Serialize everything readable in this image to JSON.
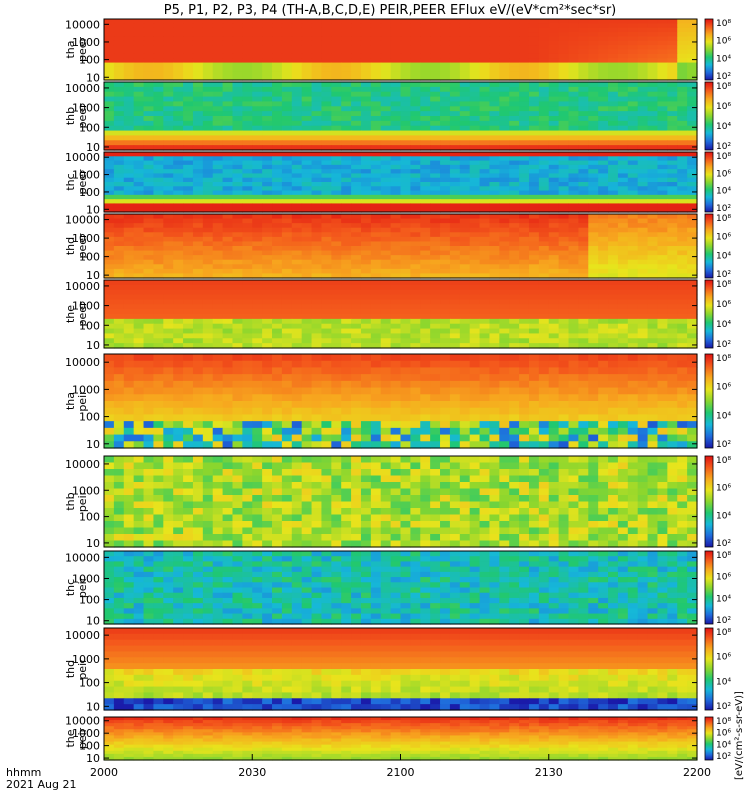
{
  "title": "P5, P1, P2, P3, P4 (TH-A,B,C,D,E) PEIR,PEER EFlux eV/(eV*cm²*sec*sr)",
  "xaxis": {
    "label_line1": "hhmm",
    "label_line2": "2021 Aug 21",
    "ticks": [
      "2000",
      "2030",
      "2100",
      "2130",
      "2200"
    ]
  },
  "colorbar_label": "[eV/(cm²-s-sr-eV)]",
  "colorbar_ticks": [
    "10⁸",
    "10⁶",
    "10⁴",
    "10²"
  ],
  "colorscale": [
    "#1a18a8",
    "#1f6bdc",
    "#16b8d8",
    "#20c870",
    "#8ad62e",
    "#e8e41c",
    "#f7a81e",
    "#f45a1c",
    "#e01212"
  ],
  "chart_data": [
    {
      "type": "heatmap",
      "panel": "tha-peer",
      "ylabel": [
        "tha",
        "peer"
      ],
      "yticks": [
        "10000",
        "1000",
        "100",
        "10"
      ],
      "ylim_eV": [
        7,
        20000
      ],
      "yscale": "log",
      "x_range": [
        "2000",
        "2200"
      ],
      "character": "electron flux: red core at high energies decaying after ~2150, green band at low energies"
    },
    {
      "type": "heatmap",
      "panel": "thb-peer",
      "ylabel": [
        "thb",
        "peer"
      ],
      "yticks": [
        "10000",
        "1000",
        "100",
        "10"
      ],
      "ylim_eV": [
        7,
        20000
      ],
      "yscale": "log",
      "x_range": [
        "2000",
        "2200"
      ],
      "character": "noisy cyan/blue at high energies, green/yellow/red at lowest energies"
    },
    {
      "type": "heatmap",
      "panel": "thc-peer",
      "ylabel": [
        "thc",
        "peer"
      ],
      "yticks": [
        "10000",
        "1000",
        "100",
        "10"
      ],
      "ylim_eV": [
        7,
        20000
      ],
      "yscale": "log",
      "x_range": [
        "2000",
        "2200"
      ],
      "character": "noisy blue at high energies, red band at lowest energies"
    },
    {
      "type": "heatmap",
      "panel": "thd-peer",
      "ylabel": [
        "thd",
        "peer"
      ],
      "yticks": [
        "10000",
        "1000",
        "100",
        "10"
      ],
      "ylim_eV": [
        7,
        20000
      ],
      "yscale": "log",
      "x_range": [
        "2000",
        "2200"
      ],
      "character": "red/orange throughout, softening after ~2140"
    },
    {
      "type": "heatmap",
      "panel": "the-peer",
      "ylabel": [
        "the",
        "peer"
      ],
      "yticks": [
        "10000",
        "1000",
        "100",
        "10"
      ],
      "ylim_eV": [
        7,
        20000
      ],
      "yscale": "log",
      "x_range": [
        "2000",
        "2200"
      ],
      "character": "red high-energy core, green low-energy band, data gap near 2132"
    },
    {
      "type": "heatmap",
      "panel": "tha-peir",
      "ylabel": [
        "tha",
        "peir"
      ],
      "yticks": [
        "10000",
        "1000",
        "100",
        "10"
      ],
      "ylim_eV": [
        7,
        20000
      ],
      "yscale": "log",
      "x_range": [
        "2000",
        "2200"
      ],
      "character": "ion flux: red/orange above ~100 eV, noisy blue/black fill below"
    },
    {
      "type": "heatmap",
      "panel": "thb-peir",
      "ylabel": [
        "thb",
        "peir"
      ],
      "yticks": [
        "10000",
        "1000",
        "100",
        "10"
      ],
      "ylim_eV": [
        7,
        20000
      ],
      "yscale": "log",
      "x_range": [
        "2000",
        "2200"
      ],
      "character": "noisy green/yellow with cyan speckle"
    },
    {
      "type": "heatmap",
      "panel": "thc-peir",
      "ylabel": [
        "thc",
        "peir"
      ],
      "yticks": [
        "10000",
        "1000",
        "100",
        "10"
      ],
      "ylim_eV": [
        7,
        20000
      ],
      "yscale": "log",
      "x_range": [
        "2000",
        "2200"
      ],
      "character": "noisy cyan/blue throughout"
    },
    {
      "type": "heatmap",
      "panel": "thd-peir",
      "ylabel": [
        "thd",
        "peir"
      ],
      "yticks": [
        "10000",
        "1000",
        "100",
        "10"
      ],
      "ylim_eV": [
        7,
        20000
      ],
      "yscale": "log",
      "x_range": [
        "2000",
        "2200"
      ],
      "character": "red top, orange/yellow middle, noisy green/black near 10 eV"
    },
    {
      "type": "heatmap",
      "panel": "the-peir",
      "ylabel": [
        "the",
        "peir"
      ],
      "yticks": [
        "10000",
        "1000",
        "100",
        "10"
      ],
      "ylim_eV": [
        7,
        20000
      ],
      "yscale": "log",
      "x_range": [
        "2000",
        "2200"
      ],
      "character": "red top fading to yellow/green toward low energies"
    }
  ]
}
